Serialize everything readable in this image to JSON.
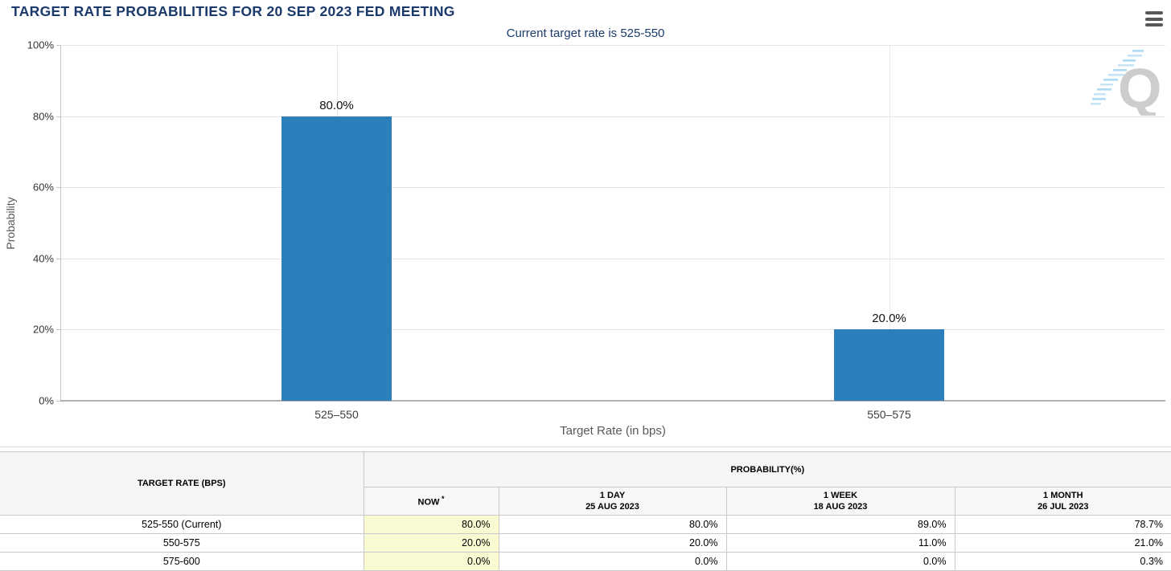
{
  "page": {
    "title": "TARGET RATE PROBABILITIES FOR 20 SEP 2023 FED MEETING",
    "subtitle": "Current target rate is 525-550"
  },
  "header": {
    "menu_icon": "hamburger-menu-icon",
    "watermark": "Q"
  },
  "colors": {
    "title_navy": "#1b3a6b",
    "bar_blue": "#2d7fbb",
    "now_highlight_yellow": "#fafad2",
    "gridline": "#e3e3e3"
  },
  "chart_data": {
    "type": "bar",
    "title": "Current target rate is 525-550",
    "categories": [
      "525–550",
      "550–575"
    ],
    "values": [
      80.0,
      20.0
    ],
    "value_labels": [
      "80.0%",
      "20.0%"
    ],
    "xlabel": "Target Rate (in bps)",
    "ylabel": "Probability",
    "ylim": [
      0,
      100
    ],
    "ytick_step": 20,
    "ytick_labels": [
      "0%",
      "20%",
      "40%",
      "60%",
      "80%",
      "100%"
    ],
    "grid": true,
    "legend": false,
    "bar_color": "#2d7fbb"
  },
  "table": {
    "row_header": "TARGET RATE (BPS)",
    "col_group_header": "PROBABILITY(%)",
    "columns": [
      {
        "label": "NOW",
        "sup": "*",
        "sub_date": ""
      },
      {
        "label": "1 DAY",
        "sup": "",
        "sub_date": "25 AUG 2023"
      },
      {
        "label": "1 WEEK",
        "sup": "",
        "sub_date": "18 AUG 2023"
      },
      {
        "label": "1 MONTH",
        "sup": "",
        "sub_date": "26 JUL 2023"
      }
    ],
    "rows": [
      {
        "rate": "525-550 (Current)",
        "now": "80.0%",
        "day": "80.0%",
        "week": "89.0%",
        "month": "78.7%"
      },
      {
        "rate": "550-575",
        "now": "20.0%",
        "day": "20.0%",
        "week": "11.0%",
        "month": "21.0%"
      },
      {
        "rate": "575-600",
        "now": "0.0%",
        "day": "0.0%",
        "week": "0.0%",
        "month": "0.3%"
      }
    ]
  }
}
